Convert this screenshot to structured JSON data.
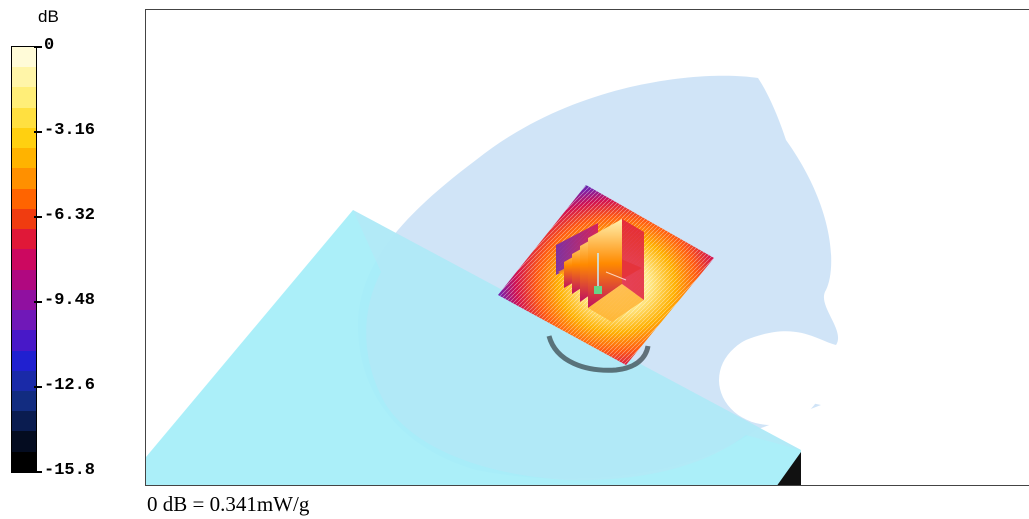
{
  "legend": {
    "unit": "dB",
    "ticks": [
      "0",
      "-3.16",
      "-6.32",
      "-9.48",
      "-12.6",
      "-15.8"
    ],
    "color_stops": [
      "#fffbd8",
      "#fff5a8",
      "#ffee78",
      "#ffe040",
      "#ffd010",
      "#ffb300",
      "#ff9000",
      "#ff6400",
      "#f03c10",
      "#e01838",
      "#cc0860",
      "#b00880",
      "#9010a0",
      "#7018b8",
      "#4818c8",
      "#2020d0",
      "#1a2aa8",
      "#122c80",
      "#0a1c50",
      "#040c20",
      "#000000"
    ]
  },
  "scene": {
    "background": "#ffffff",
    "head_phantom_color": "#cde3f7",
    "flat_phantom_color": "#a4eef8",
    "max_marker_color": "#66d488"
  },
  "footer": {
    "reference": "0 dB = 0.341mW/g"
  }
}
